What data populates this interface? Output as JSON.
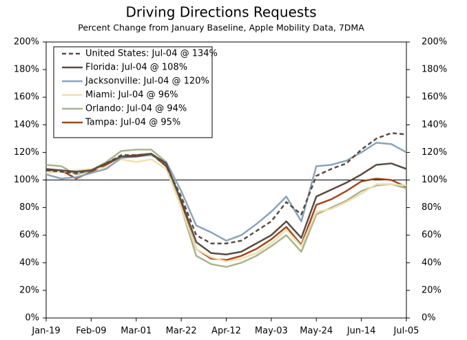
{
  "chart_data": {
    "type": "line",
    "title": "Driving Directions Requests",
    "subtitle": "Percent Change from January Baseline, Apple Mobility Data, 7DMA",
    "categories": [
      "Jan-19",
      null,
      null,
      "Feb-09",
      null,
      null,
      "Mar-01",
      null,
      null,
      "Mar-22",
      null,
      null,
      "Apr-12",
      null,
      null,
      "May-03",
      null,
      null,
      "May-24",
      null,
      null,
      "Jun-14",
      null,
      null,
      "Jul-05"
    ],
    "series": [
      {
        "name": "United States: Jul-04 @ 134%",
        "color": "#5a4a42",
        "dashed": true,
        "values": [
          107,
          106,
          105,
          107,
          112,
          118,
          118,
          119,
          110,
          88,
          60,
          54,
          54,
          56,
          63,
          70,
          84,
          75,
          103,
          108,
          112,
          122,
          130,
          134,
          133
        ]
      },
      {
        "name": "Florida: Jul-04 @ 108%",
        "color": "#5b4a40",
        "values": [
          108,
          107,
          106,
          107,
          112,
          117,
          117,
          119,
          112,
          85,
          55,
          47,
          46,
          48,
          54,
          60,
          70,
          58,
          88,
          93,
          98,
          104,
          111,
          112,
          108
        ]
      },
      {
        "name": "Jacksonville: Jul-04 @ 120%",
        "color": "#8aa4b8",
        "values": [
          104,
          101,
          102,
          105,
          108,
          116,
          117,
          118,
          113,
          92,
          67,
          62,
          56,
          60,
          68,
          77,
          88,
          70,
          110,
          111,
          114,
          120,
          127,
          126,
          120
        ]
      },
      {
        "name": "Miami: Jul-04 @ 96%",
        "color": "#f0dfae",
        "values": [
          105,
          106,
          107,
          108,
          109,
          115,
          113,
          115,
          108,
          80,
          50,
          44,
          41,
          43,
          47,
          54,
          64,
          52,
          77,
          79,
          84,
          90,
          97,
          97,
          96
        ]
      },
      {
        "name": "Orlando: Jul-04 @ 94%",
        "color": "#a8b38c",
        "values": [
          111,
          110,
          104,
          107,
          113,
          121,
          122,
          122,
          113,
          80,
          45,
          39,
          37,
          40,
          45,
          52,
          60,
          48,
          75,
          80,
          85,
          92,
          96,
          97,
          94
        ]
      },
      {
        "name": "Tampa: Jul-04 @ 95%",
        "color": "#a0461c",
        "values": [
          107,
          107,
          101,
          106,
          111,
          117,
          118,
          119,
          110,
          82,
          50,
          43,
          42,
          45,
          50,
          57,
          66,
          53,
          82,
          86,
          92,
          99,
          101,
          100,
          95
        ]
      }
    ],
    "ylim": [
      0,
      200
    ],
    "yticks": [
      {
        "value": 0,
        "label": "0%"
      },
      {
        "value": 20,
        "label": "20%"
      },
      {
        "value": 40,
        "label": "40%"
      },
      {
        "value": 60,
        "label": "60%"
      },
      {
        "value": 80,
        "label": "80%"
      },
      {
        "value": 100,
        "label": "100%"
      },
      {
        "value": 120,
        "label": "120%"
      },
      {
        "value": 140,
        "label": "140%"
      },
      {
        "value": 160,
        "label": "160%"
      },
      {
        "value": 180,
        "label": "180%"
      },
      {
        "value": 200,
        "label": "200%"
      }
    ],
    "y2lim": [
      0,
      200
    ],
    "y2ticks": [
      {
        "value": 0,
        "label": "0%"
      },
      {
        "value": 20,
        "label": "20%"
      },
      {
        "value": 40,
        "label": "40%"
      },
      {
        "value": 60,
        "label": "60%"
      },
      {
        "value": 80,
        "label": "80%"
      },
      {
        "value": 100,
        "label": "100%"
      },
      {
        "value": 120,
        "label": "120%"
      },
      {
        "value": 140,
        "label": "140%"
      },
      {
        "value": 160,
        "label": "160%"
      },
      {
        "value": 180,
        "label": "180%"
      },
      {
        "value": 200,
        "label": "200%"
      }
    ],
    "hline": 100,
    "legend": "upper left"
  }
}
